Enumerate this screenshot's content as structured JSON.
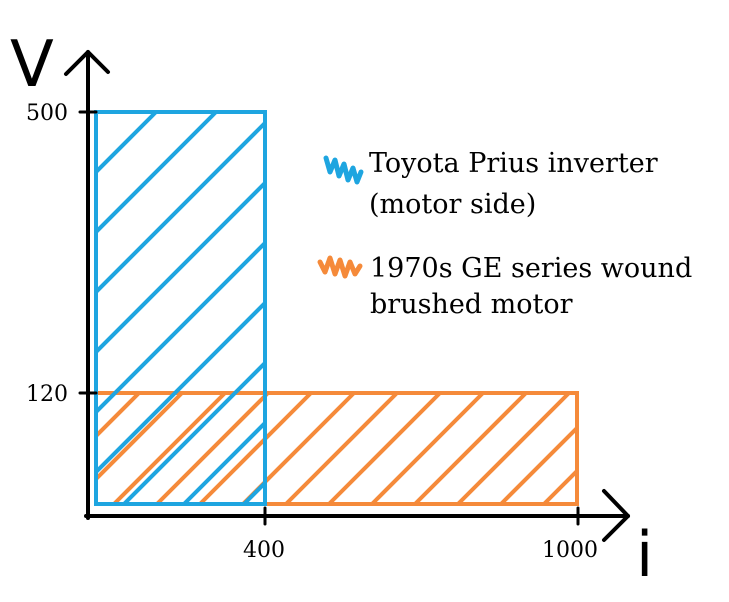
{
  "axes": {
    "y_label": "V",
    "x_label": "i",
    "y_ticks": [
      {
        "value": 500,
        "label": "500"
      },
      {
        "value": 120,
        "label": "120"
      }
    ],
    "x_ticks": [
      {
        "value": 400,
        "label": "400"
      },
      {
        "value": 1000,
        "label": "1000"
      }
    ]
  },
  "regions": [
    {
      "id": "prius",
      "i_max": 400,
      "v_max": 500,
      "color": "#1ea5e0",
      "legend_lines": [
        "Toyota Prius inverter",
        "(motor side)"
      ]
    },
    {
      "id": "ge",
      "i_max": 1000,
      "v_max": 120,
      "color": "#f58a3a",
      "legend_lines": [
        "1970s GE series wound",
        "brushed motor"
      ]
    }
  ]
}
